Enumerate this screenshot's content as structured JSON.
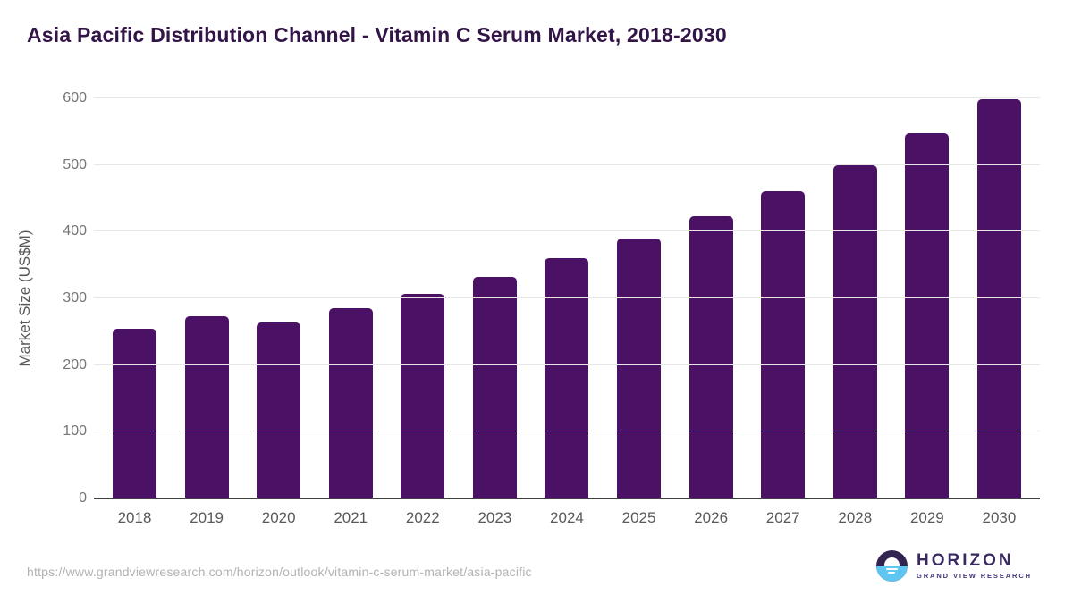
{
  "page": {
    "source_url": "https://www.grandviewresearch.com/horizon/outlook/vitamin-c-serum-market/asia-pacific"
  },
  "brand": {
    "name": "HORIZON",
    "subtitle": "GRAND VIEW RESEARCH",
    "logo_icon": "horizon-sun-circle-icon",
    "logo_purple": "#332350",
    "logo_blue": "#5fc6f1"
  },
  "chart_data": {
    "type": "bar",
    "title": "Asia Pacific Distribution Channel - Vitamin C Serum Market, 2018-2030",
    "xlabel": "",
    "ylabel": "Market Size (US$M)",
    "categories": [
      "2018",
      "2019",
      "2020",
      "2021",
      "2022",
      "2023",
      "2024",
      "2025",
      "2026",
      "2027",
      "2028",
      "2029",
      "2030"
    ],
    "values": [
      255,
      273,
      264,
      285,
      307,
      332,
      360,
      390,
      423,
      461,
      500,
      548,
      599
    ],
    "ylim": [
      0,
      600
    ],
    "yticks": [
      0,
      100,
      200,
      300,
      400,
      500,
      600
    ],
    "grid": true,
    "legend": "none",
    "bar_color": "#4a1164",
    "title_color": "#321447",
    "grid_color": "#e7e7e7",
    "axis_line_color": "#3f4040",
    "ytick_color": "#757575",
    "xtick_color": "#58595b"
  }
}
